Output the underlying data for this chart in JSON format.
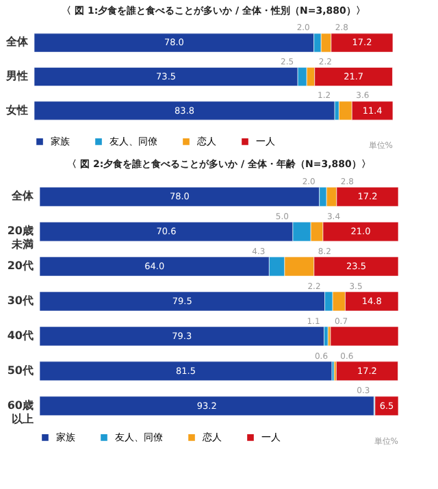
{
  "chart_data": [
    {
      "type": "bar",
      "orientation": "horizontal",
      "stacked": true,
      "title": "〈 図 1:夕食を誰と食べることが多いか / 全体・性別（N=3,880）〉",
      "categories": [
        "全体",
        "男性",
        "女性"
      ],
      "legend": "bottom",
      "annotations": [
        "単位%"
      ],
      "series": [
        {
          "name": "家族",
          "color": "#1c3f9e",
          "values": [
            78.0,
            73.5,
            83.8
          ],
          "value_labels": [
            "78.0",
            "73.5",
            "83.8"
          ]
        },
        {
          "name": "友人、同僚",
          "color": "#1e9bd3",
          "values": [
            2.0,
            2.5,
            1.2
          ],
          "value_labels": [
            "2.0",
            "2.5",
            "1.2"
          ]
        },
        {
          "name": "恋人",
          "color": "#f5a01a",
          "values": [
            2.8,
            2.2,
            3.6
          ],
          "value_labels": [
            "2.8",
            "2.2",
            "3.6"
          ]
        },
        {
          "name": "一人",
          "color": "#d0121b",
          "values": [
            17.2,
            21.7,
            11.4
          ],
          "value_labels": [
            "17.2",
            "21.7",
            "11.4"
          ]
        }
      ]
    },
    {
      "type": "bar",
      "orientation": "horizontal",
      "stacked": true,
      "title": "〈 図 2:夕食を誰と食べることが多いか / 全体・年齢（N=3,880）〉",
      "categories": [
        "全体",
        "20歳未満",
        "20代",
        "30代",
        "40代",
        "50代",
        "60歳以上"
      ],
      "legend": "bottom",
      "annotations": [
        "単位%"
      ],
      "series": [
        {
          "name": "家族",
          "color": "#1c3f9e",
          "values": [
            78.0,
            70.6,
            64.0,
            79.5,
            79.3,
            81.5,
            93.2
          ],
          "value_labels": [
            "78.0",
            "70.6",
            "64.0",
            "79.5",
            "79.3",
            "81.5",
            "93.2"
          ]
        },
        {
          "name": "友人、同僚",
          "color": "#1e9bd3",
          "values": [
            2.0,
            5.0,
            4.3,
            2.2,
            1.1,
            0.6,
            0.3
          ],
          "value_labels": [
            "2.0",
            "5.0",
            "4.3",
            "2.2",
            "1.1",
            "0.6",
            "0.3"
          ]
        },
        {
          "name": "恋人",
          "color": "#f5a01a",
          "values": [
            2.8,
            3.4,
            8.2,
            3.5,
            0.7,
            0.6,
            0
          ],
          "value_labels": [
            "2.8",
            "3.4",
            "8.2",
            "3.5",
            "0.7",
            "0.6",
            null
          ]
        },
        {
          "name": "一人",
          "color": "#d0121b",
          "values": [
            17.2,
            21.0,
            23.5,
            14.8,
            18.9,
            17.2,
            6.5
          ],
          "value_labels": [
            "17.2",
            "21.0",
            "23.5",
            "14.8",
            null,
            "17.2",
            "6.5"
          ]
        }
      ]
    }
  ]
}
